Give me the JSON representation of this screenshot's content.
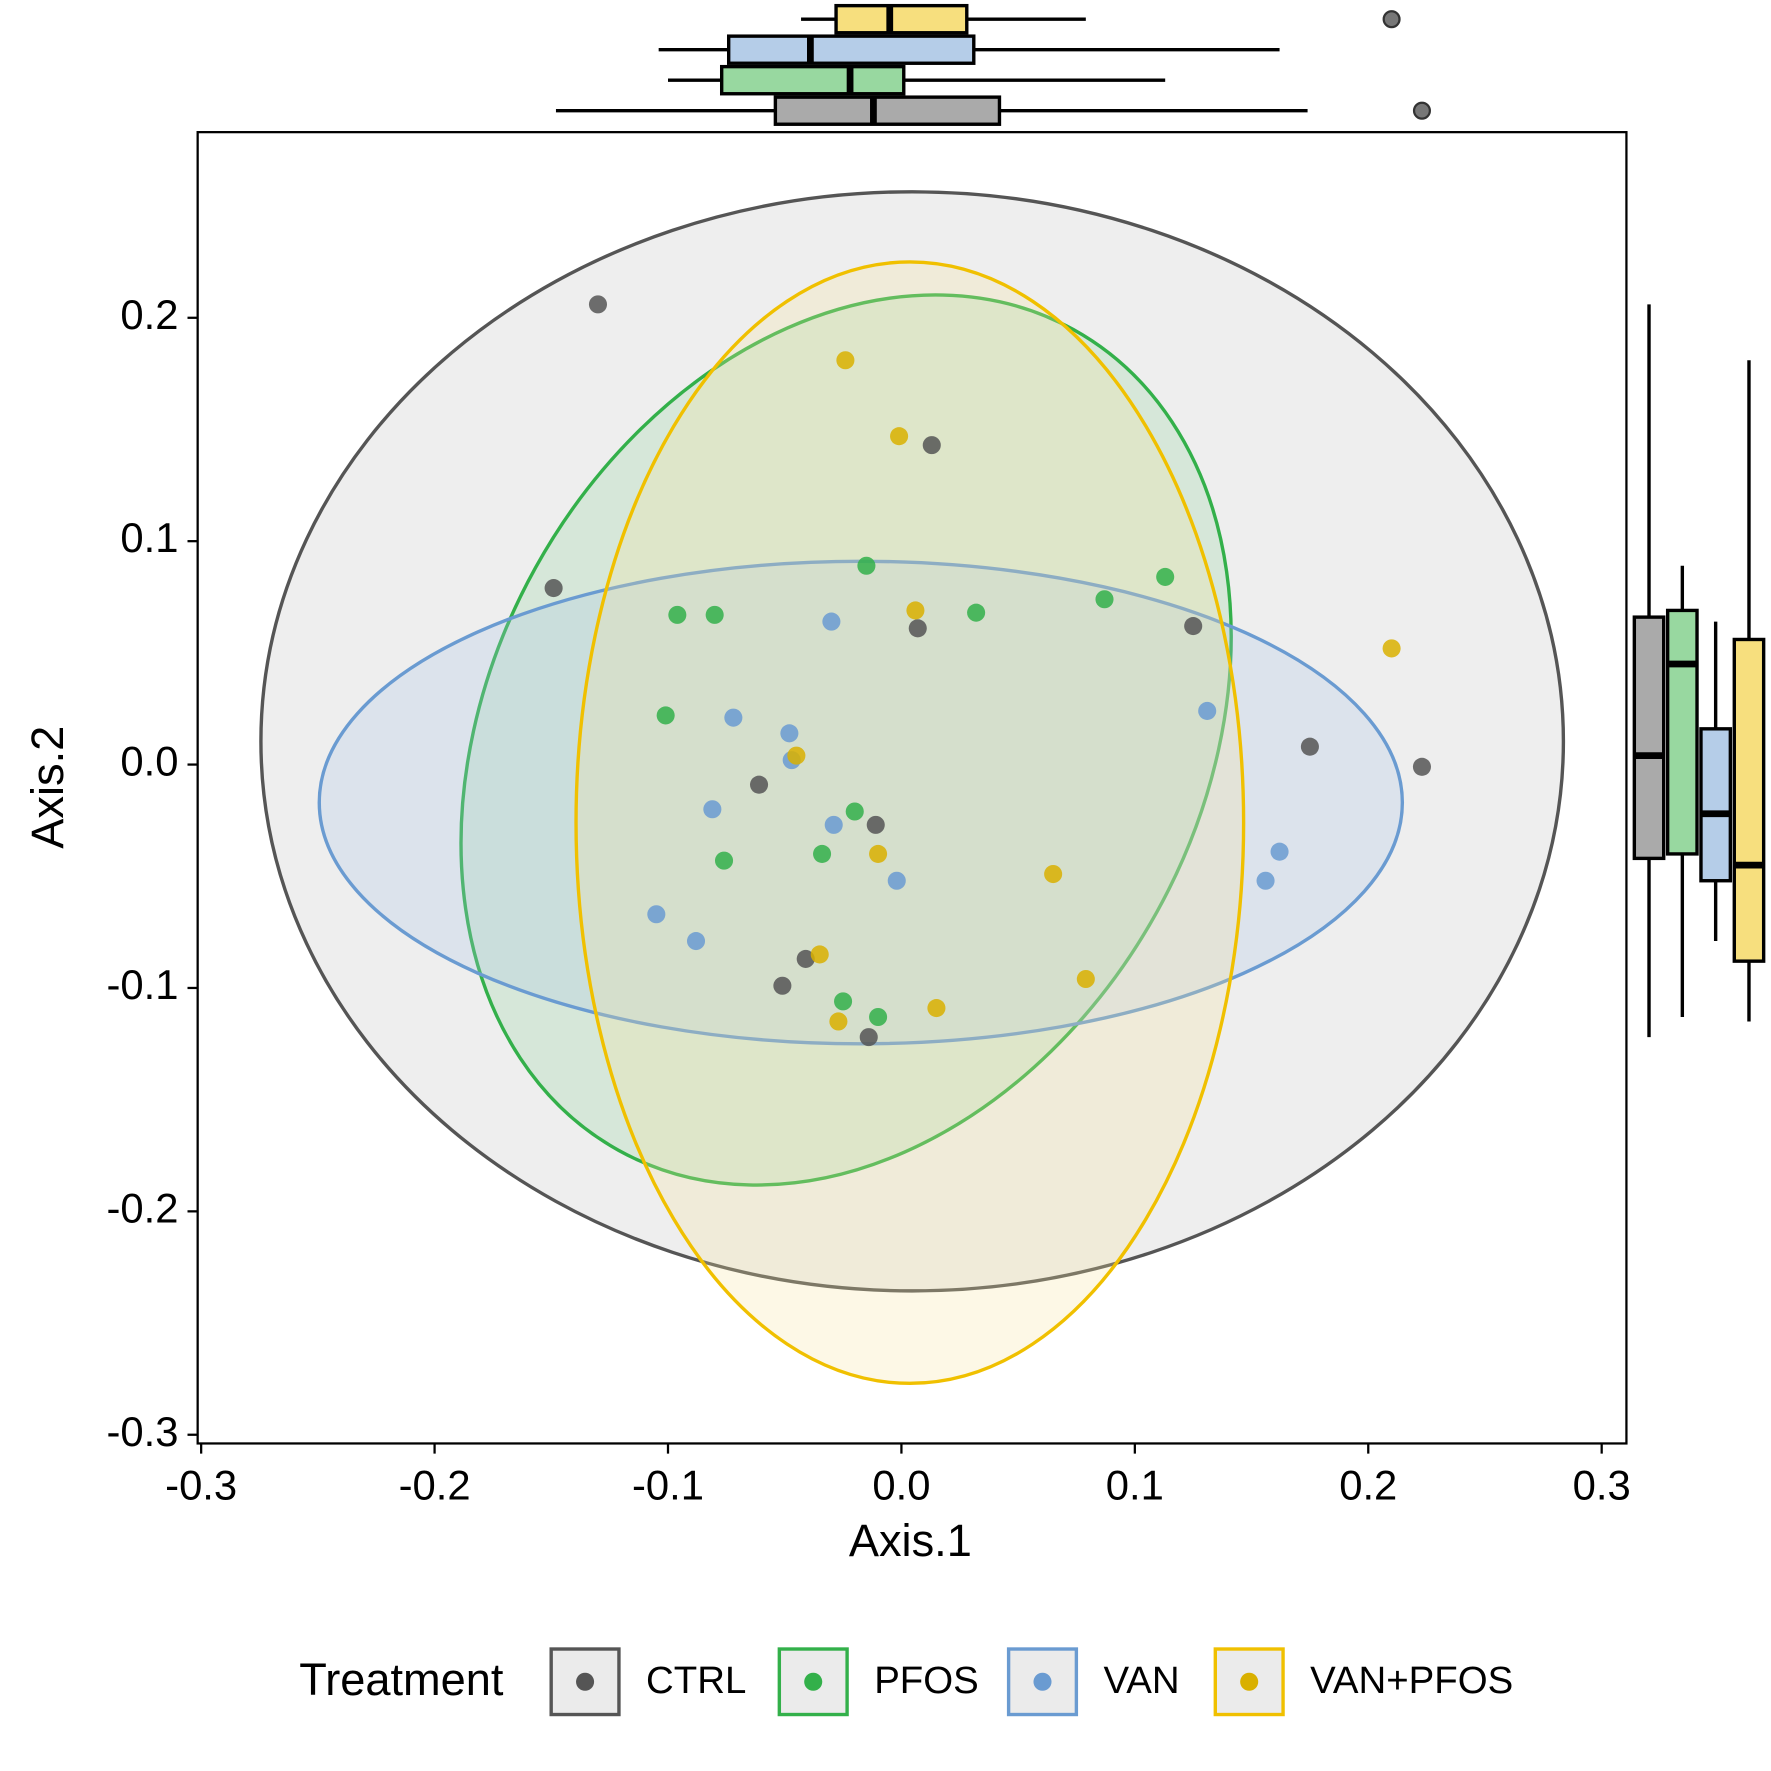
{
  "chart_data": {
    "type": "scatter",
    "xlabel": "Axis.1",
    "ylabel": "Axis.2",
    "legend_title": "Treatment",
    "xlim": [
      -0.3015,
      0.3106
    ],
    "ylim": [
      -0.3039,
      0.2831
    ],
    "xticks": [
      -0.3,
      -0.2,
      -0.1,
      {
        "value": 0,
        "label": "0.0"
      },
      0.1,
      0.2,
      0.3
    ],
    "yticks": [
      -0.3,
      -0.2,
      -0.1,
      {
        "value": 0,
        "label": "0.0"
      },
      0.1,
      0.2
    ],
    "series": [
      {
        "name": "CTRL",
        "color": "#555555",
        "fill": "#bdbdbd",
        "box_fill": "#aaaaaa",
        "x": [
          -0.13,
          -0.149,
          0.013,
          0.007,
          0.125,
          0.175,
          0.223,
          -0.061,
          -0.011,
          -0.041,
          -0.051,
          -0.014
        ],
        "y": [
          0.206,
          0.079,
          0.143,
          0.061,
          0.062,
          0.008,
          -0.001,
          -0.009,
          -0.027,
          -0.087,
          -0.099,
          -0.122
        ],
        "ellipse": {
          "cx": 0.0046,
          "cy": 0.0104,
          "rx": 0.279,
          "ry": 0.246,
          "angle": 0
        },
        "box_x": {
          "min": -0.148,
          "q1": -0.054,
          "median": -0.012,
          "q3": 0.042,
          "max": 0.174,
          "outliers": [
            0.223
          ]
        },
        "box_y": {
          "min": -0.122,
          "q1": -0.042,
          "median": 0.004,
          "q3": 0.066,
          "max": 0.206,
          "outliers": []
        }
      },
      {
        "name": "PFOS",
        "color": "#33b04a",
        "fill": "#8fd49b",
        "box_fill": "#98d8a0",
        "x": [
          -0.015,
          0.113,
          0.087,
          0.032,
          -0.096,
          -0.08,
          -0.101,
          -0.02,
          -0.034,
          -0.076,
          -0.025,
          -0.01
        ],
        "y": [
          0.089,
          0.084,
          0.074,
          0.068,
          0.067,
          0.067,
          0.022,
          -0.021,
          -0.04,
          -0.043,
          -0.106,
          -0.113
        ],
        "ellipse": {
          "cx": -0.0237,
          "cy": 0.011,
          "rx": 0.201,
          "ry": 0.159,
          "angle": 61
        },
        "box_x": {
          "min": -0.1,
          "q1": -0.077,
          "median": -0.022,
          "q3": 0.001,
          "max": 0.113,
          "outliers": []
        },
        "box_y": {
          "min": -0.113,
          "q1": -0.04,
          "median": 0.045,
          "q3": 0.069,
          "max": 0.089,
          "outliers": []
        }
      },
      {
        "name": "VAN",
        "color": "#6a9bd1",
        "fill": "#a9c3e6",
        "box_fill": "#b5cde8",
        "x": [
          -0.03,
          -0.072,
          0.131,
          -0.048,
          -0.047,
          -0.081,
          -0.029,
          -0.002,
          0.156,
          0.162,
          -0.105,
          -0.088
        ],
        "y": [
          0.064,
          0.021,
          0.024,
          0.014,
          0.002,
          -0.02,
          -0.027,
          -0.052,
          -0.052,
          -0.039,
          -0.067,
          -0.079
        ],
        "ellipse": {
          "cx": -0.0174,
          "cy": -0.017,
          "rx": 0.232,
          "ry": 0.108,
          "angle": 0
        },
        "box_x": {
          "min": -0.104,
          "q1": -0.074,
          "median": -0.039,
          "q3": 0.031,
          "max": 0.162,
          "outliers": []
        },
        "box_y": {
          "min": -0.079,
          "q1": -0.052,
          "median": -0.022,
          "q3": 0.016,
          "max": 0.064,
          "outliers": []
        }
      },
      {
        "name": "VAN+PFOS",
        "color": "#f0c000",
        "fill": "#f7e49a",
        "box_fill": "#f7df7e",
        "point_color": "#d9b000",
        "x": [
          -0.024,
          -0.001,
          0.006,
          0.21,
          -0.045,
          -0.01,
          0.065,
          -0.035,
          0.079,
          0.015,
          -0.027
        ],
        "y": [
          0.181,
          0.147,
          0.069,
          0.052,
          0.004,
          -0.04,
          -0.049,
          -0.085,
          -0.096,
          -0.109,
          -0.115
        ],
        "ellipse": {
          "cx": 0.0036,
          "cy": -0.026,
          "rx": 0.143,
          "ry": 0.251,
          "angle": 0
        },
        "box_x": {
          "min": -0.043,
          "q1": -0.028,
          "median": -0.005,
          "q3": 0.028,
          "max": 0.079,
          "outliers": [
            0.21
          ]
        },
        "box_y": {
          "min": -0.115,
          "q1": -0.088,
          "median": -0.045,
          "q3": 0.056,
          "max": 0.181,
          "outliers": []
        }
      }
    ]
  }
}
